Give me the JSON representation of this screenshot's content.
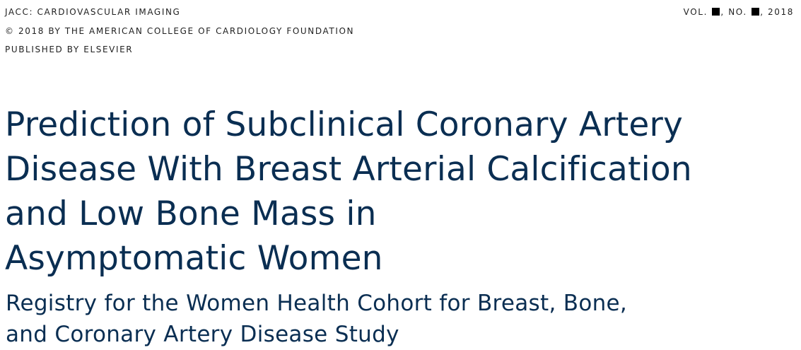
{
  "header": {
    "journal": "JACC: CARDIOVASCULAR IMAGING",
    "copyright": "© 2018 BY THE AMERICAN COLLEGE OF CARDIOLOGY FOUNDATION",
    "publisher": "PUBLISHED BY ELSEVIER",
    "issue": {
      "vol_label": "VOL.",
      "no_label": ", NO.",
      "year": ", 2018"
    }
  },
  "article": {
    "title_lines": [
      "Prediction of Subclinical Coronary Artery",
      "Disease With Breast Arterial Calcification",
      "and Low Bone Mass in",
      "Asymptomatic Women"
    ],
    "subtitle_lines": [
      "Registry for the Women Health Cohort for Breast, Bone,",
      "and Coronary Artery Disease Study"
    ]
  },
  "colors": {
    "title": "#0a2e52",
    "meta": "#222222"
  }
}
